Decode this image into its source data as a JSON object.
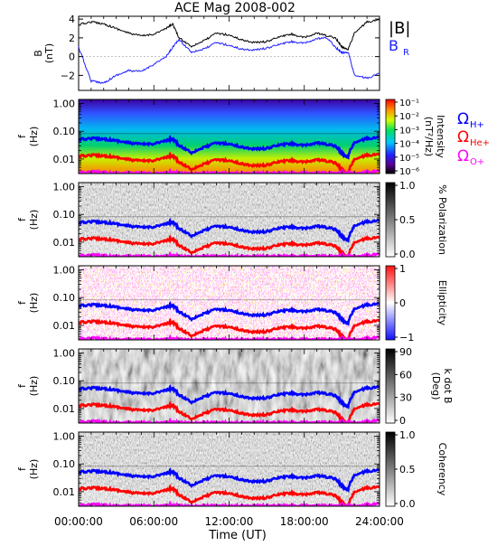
{
  "title": "ACE Mag 2008-002",
  "x_axis": {
    "label": "Time (UT)",
    "ticks": [
      "00:00:00",
      "06:00:00",
      "12:00:00",
      "18:00:00",
      "24:00:00"
    ]
  },
  "colors": {
    "B_total": "#000000",
    "B_R": "#2020ff",
    "H_plus": "#0000ff",
    "He_plus": "#ff0000",
    "O_plus": "#ff00ff"
  },
  "chart_data": [
    {
      "type": "line",
      "panel": "magnetic-field",
      "ylabel": "B\n(nT)",
      "ylim": [
        -3.6,
        4.3
      ],
      "yticks": [
        "4",
        "2",
        "0",
        "−2"
      ],
      "series": [
        {
          "name": "|B|",
          "x": [
            0,
            1,
            2,
            3,
            4,
            5,
            6,
            7,
            7.5,
            8,
            9,
            10,
            11,
            12,
            13,
            14,
            15,
            16,
            17,
            18,
            19,
            19.8,
            20.5,
            21,
            21.5,
            22,
            23,
            24
          ],
          "values": [
            3.4,
            3.7,
            3.5,
            3.0,
            2.5,
            2.2,
            2.4,
            3.0,
            3.5,
            2.0,
            1.1,
            1.7,
            2.5,
            2.3,
            1.8,
            1.5,
            1.6,
            2.1,
            2.4,
            2.0,
            2.5,
            2.2,
            2.0,
            1.0,
            0.8,
            2.5,
            3.7,
            3.9
          ]
        },
        {
          "name": "B_R",
          "x": [
            0,
            1,
            2,
            3,
            4,
            5,
            6,
            7,
            7.5,
            8,
            9,
            10,
            11,
            12,
            13,
            14,
            15,
            16,
            17,
            18,
            19,
            19.8,
            20.5,
            21,
            21.5,
            22,
            23,
            24
          ],
          "values": [
            1.0,
            -2.6,
            -2.8,
            -2.0,
            -1.5,
            -1.6,
            -0.8,
            0.0,
            1.0,
            1.8,
            0.5,
            0.8,
            1.5,
            1.2,
            0.8,
            0.7,
            0.9,
            1.3,
            1.6,
            1.4,
            1.9,
            2.0,
            1.0,
            0.4,
            0.5,
            -2.0,
            -2.3,
            -1.8
          ]
        }
      ],
      "legend": [
        "|B|",
        "B",
        "R"
      ]
    },
    {
      "type": "heatmap",
      "panel": "intensity",
      "ylabel": "f\n(Hz)",
      "scale": "log",
      "yticks": [
        "1.00",
        "0.10",
        "0.01"
      ],
      "colorbar": {
        "label": "Intensity\n(nT²/Hz)",
        "ticks": [
          "10⁻¹",
          "10⁻²",
          "10⁻³",
          "10⁻⁴",
          "10⁻⁵",
          "10⁻⁶"
        ]
      }
    },
    {
      "type": "heatmap",
      "panel": "polarization",
      "ylabel": "f\n(Hz)",
      "scale": "log",
      "yticks": [
        "1.00",
        "0.10",
        "0.01"
      ],
      "colorbar": {
        "label": "% Polarization",
        "ticks": [
          "1.0",
          "0.5",
          "0.0"
        ]
      }
    },
    {
      "type": "heatmap",
      "panel": "ellipticity",
      "ylabel": "f\n(Hz)",
      "scale": "log",
      "yticks": [
        "1.00",
        "0.10",
        "0.01"
      ],
      "colorbar": {
        "label": "Ellipticity",
        "ticks": [
          "1",
          "0",
          "−1"
        ]
      }
    },
    {
      "type": "heatmap",
      "panel": "k-dot-b",
      "ylabel": "f\n(Hz)",
      "scale": "log",
      "yticks": [
        "1.00",
        "0.10",
        "0.01"
      ],
      "colorbar": {
        "label": "k dot B\n(Deg)",
        "ticks": [
          "90",
          "60",
          "30",
          "0"
        ]
      }
    },
    {
      "type": "heatmap",
      "panel": "coherency",
      "ylabel": "f\n(Hz)",
      "scale": "log",
      "yticks": [
        "1.00",
        "0.10",
        "0.01"
      ],
      "colorbar": {
        "label": "Coherency",
        "ticks": [
          "1.0",
          "0.5",
          "0.0"
        ]
      }
    }
  ],
  "gyrofrequency_lines": {
    "x": [
      0,
      1,
      2,
      3,
      4,
      5,
      6,
      7,
      7.5,
      8,
      9,
      10,
      11,
      12,
      13,
      14,
      15,
      16,
      17,
      18,
      19,
      19.8,
      20.5,
      21,
      21.5,
      22,
      23,
      24
    ],
    "labels": [
      "Ω",
      "H+",
      "Ω",
      "He+",
      "Ω",
      "O+"
    ],
    "H_plus": [
      0.05,
      0.055,
      0.053,
      0.046,
      0.038,
      0.034,
      0.036,
      0.045,
      0.053,
      0.03,
      0.017,
      0.026,
      0.038,
      0.035,
      0.027,
      0.023,
      0.024,
      0.032,
      0.036,
      0.03,
      0.038,
      0.033,
      0.03,
      0.015,
      0.012,
      0.038,
      0.055,
      0.058
    ]
  }
}
